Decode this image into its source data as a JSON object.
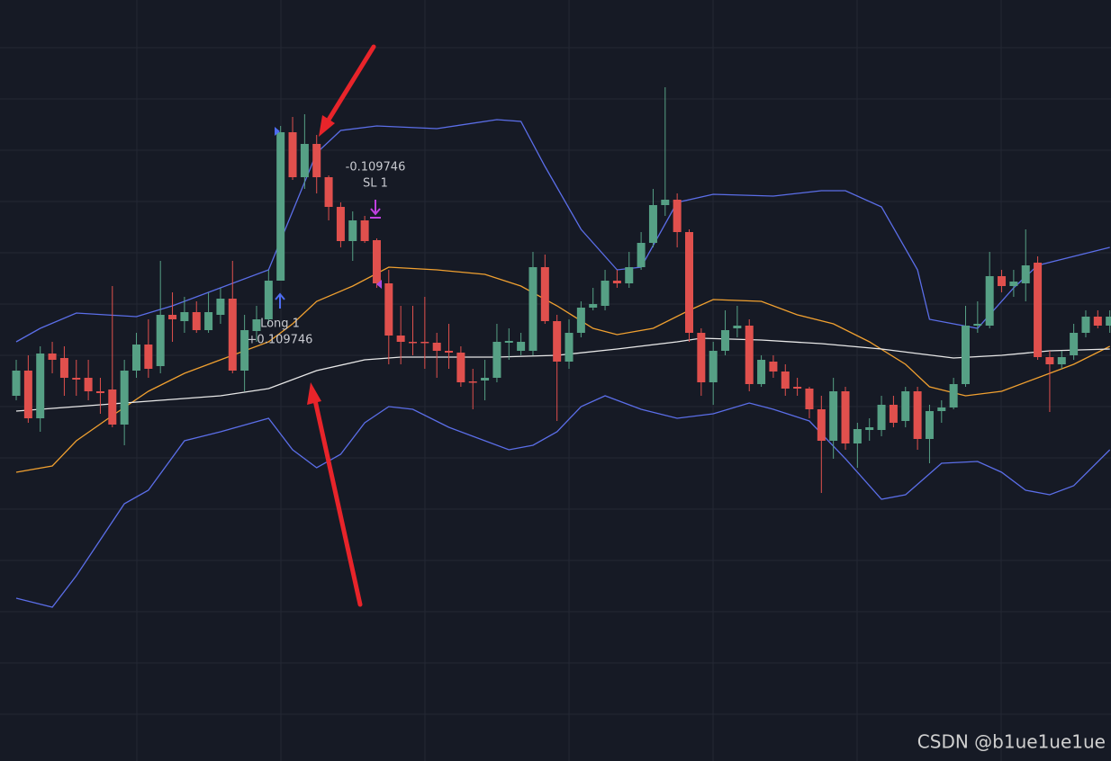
{
  "chart_data": {
    "type": "candlestick",
    "up_color": "#56a085",
    "down_color": "#e0504d",
    "xlim": [
      -1.35,
      91.1
    ],
    "ylim": [
      0,
      846
    ],
    "candles": [
      [
        406,
        446,
        401,
        434
      ],
      [
        434,
        451,
        376,
        381
      ],
      [
        381,
        461,
        366,
        453
      ],
      [
        453,
        466,
        431,
        446
      ],
      [
        448,
        461,
        406,
        426
      ],
      [
        426,
        446,
        406,
        424
      ],
      [
        426,
        446,
        401,
        411
      ],
      [
        411,
        426,
        386,
        409
      ],
      [
        413,
        528,
        371,
        374
      ],
      [
        374,
        446,
        351,
        434
      ],
      [
        434,
        476,
        426,
        463
      ],
      [
        463,
        491,
        426,
        436
      ],
      [
        439,
        556,
        431,
        496
      ],
      [
        496,
        521,
        466,
        491
      ],
      [
        489,
        516,
        476,
        499
      ],
      [
        499,
        511,
        476,
        479
      ],
      [
        479,
        521,
        476,
        499
      ],
      [
        496,
        526,
        486,
        514
      ],
      [
        514,
        556,
        431,
        434
      ],
      [
        434,
        496,
        411,
        479
      ],
      [
        478,
        506,
        466,
        491
      ],
      [
        491,
        546,
        486,
        534
      ],
      [
        534,
        706,
        534,
        699
      ],
      [
        699,
        716,
        646,
        649
      ],
      [
        649,
        719,
        636,
        686
      ],
      [
        686,
        696,
        631,
        649
      ],
      [
        649,
        651,
        601,
        616
      ],
      [
        616,
        621,
        571,
        578
      ],
      [
        578,
        611,
        556,
        601
      ],
      [
        601,
        606,
        576,
        578
      ],
      [
        579,
        581,
        526,
        531
      ],
      [
        531,
        546,
        441,
        473
      ],
      [
        473,
        506,
        441,
        466
      ],
      [
        466,
        506,
        451,
        465
      ],
      [
        466,
        516,
        436,
        465
      ],
      [
        465,
        476,
        426,
        456
      ],
      [
        456,
        486,
        436,
        454
      ],
      [
        454,
        461,
        416,
        421
      ],
      [
        422,
        436,
        391,
        421
      ],
      [
        423,
        446,
        401,
        426
      ],
      [
        426,
        486,
        421,
        466
      ],
      [
        465,
        481,
        446,
        467
      ],
      [
        456,
        476,
        451,
        466
      ],
      [
        456,
        566,
        451,
        549
      ],
      [
        549,
        563,
        486,
        489
      ],
      [
        489,
        496,
        378,
        444
      ],
      [
        444,
        491,
        436,
        476
      ],
      [
        476,
        511,
        471,
        504
      ],
      [
        504,
        526,
        501,
        508
      ],
      [
        506,
        546,
        501,
        534
      ],
      [
        534,
        546,
        526,
        531
      ],
      [
        531,
        566,
        526,
        549
      ],
      [
        549,
        588,
        546,
        576
      ],
      [
        576,
        636,
        571,
        618
      ],
      [
        618,
        749,
        606,
        624
      ],
      [
        624,
        631,
        571,
        588
      ],
      [
        588,
        591,
        466,
        476
      ],
      [
        476,
        481,
        406,
        421
      ],
      [
        421,
        466,
        396,
        456
      ],
      [
        456,
        501,
        451,
        479
      ],
      [
        481,
        506,
        471,
        484
      ],
      [
        484,
        491,
        411,
        419
      ],
      [
        419,
        451,
        416,
        446
      ],
      [
        444,
        451,
        426,
        433
      ],
      [
        433,
        441,
        406,
        414
      ],
      [
        416,
        426,
        406,
        414
      ],
      [
        414,
        416,
        381,
        391
      ],
      [
        391,
        406,
        298,
        356
      ],
      [
        356,
        426,
        336,
        411
      ],
      [
        411,
        416,
        346,
        353
      ],
      [
        353,
        376,
        326,
        369
      ],
      [
        368,
        381,
        356,
        371
      ],
      [
        368,
        406,
        361,
        396
      ],
      [
        396,
        406,
        371,
        376
      ],
      [
        378,
        416,
        371,
        411
      ],
      [
        411,
        416,
        346,
        358
      ],
      [
        358,
        396,
        331,
        389
      ],
      [
        389,
        401,
        376,
        393
      ],
      [
        393,
        426,
        391,
        419
      ],
      [
        419,
        506,
        416,
        484
      ],
      [
        484,
        511,
        476,
        486
      ],
      [
        484,
        566,
        481,
        539
      ],
      [
        539,
        546,
        521,
        528
      ],
      [
        528,
        546,
        516,
        533
      ],
      [
        531,
        591,
        511,
        551
      ],
      [
        554,
        561,
        446,
        449
      ],
      [
        449,
        456,
        388,
        441
      ],
      [
        441,
        456,
        436,
        449
      ],
      [
        451,
        486,
        446,
        476
      ],
      [
        476,
        501,
        471,
        494
      ],
      [
        494,
        501,
        481,
        484
      ],
      [
        484,
        501,
        476,
        494
      ]
    ],
    "lines": [
      {
        "color": "#5b6ee8",
        "x": [
          0,
          2,
          5,
          10,
          13,
          17,
          21,
          23,
          25,
          27,
          30,
          35,
          40,
          42,
          44,
          47,
          50,
          52,
          55,
          58,
          63,
          67,
          69,
          72,
          75,
          76,
          80,
          83,
          85,
          88,
          91
        ],
        "values": [
          466,
          481,
          498,
          494,
          506,
          526,
          546,
          611,
          676,
          701,
          706,
          703,
          713,
          711,
          661,
          591,
          546,
          549,
          621,
          630,
          628,
          634,
          634,
          616,
          546,
          491,
          481,
          526,
          551,
          561,
          571
        ]
      },
      {
        "color": "#5b6ee8",
        "x": [
          0,
          3,
          5,
          7,
          9,
          11,
          14,
          17,
          21,
          23,
          25,
          27,
          29,
          31,
          33,
          36,
          38,
          41,
          43,
          45,
          47,
          49,
          52,
          55,
          58,
          61,
          63,
          66,
          69,
          72,
          74,
          77,
          80,
          82,
          84,
          86,
          88,
          91
        ],
        "values": [
          181,
          171,
          206,
          246,
          286,
          301,
          356,
          366,
          381,
          346,
          326,
          341,
          376,
          394,
          391,
          371,
          361,
          346,
          351,
          366,
          394,
          406,
          391,
          381,
          386,
          398,
          391,
          378,
          336,
          291,
          296,
          331,
          333,
          321,
          301,
          296,
          306,
          346
        ]
      },
      {
        "color": "#f0a030",
        "x": [
          0,
          3,
          5,
          8,
          11,
          14,
          17,
          21,
          23,
          25,
          28,
          31,
          35,
          39,
          42,
          45,
          48,
          50,
          53,
          56,
          58,
          62,
          65,
          68,
          71,
          74,
          76,
          79,
          82,
          85,
          88,
          91
        ],
        "values": [
          321,
          328,
          356,
          384,
          411,
          431,
          446,
          466,
          486,
          511,
          528,
          549,
          546,
          541,
          528,
          506,
          481,
          474,
          481,
          501,
          513,
          511,
          496,
          486,
          466,
          441,
          416,
          406,
          411,
          426,
          441,
          461
        ]
      },
      {
        "color": "#e8e8e8",
        "x": [
          0,
          5,
          10,
          17,
          21,
          25,
          29,
          32,
          40,
          45,
          50,
          55,
          57,
          62,
          67,
          72,
          78,
          82,
          86,
          91
        ],
        "values": [
          389,
          394,
          399,
          406,
          414,
          434,
          446,
          449,
          449,
          451,
          458,
          466,
          470,
          468,
          464,
          458,
          448,
          451,
          456,
          458
        ]
      }
    ],
    "annotations": [
      "-0.109746",
      "SL 1",
      "Long 1",
      "+0.109746"
    ],
    "watermark": "CSDN @b1ue1ue1ue"
  }
}
